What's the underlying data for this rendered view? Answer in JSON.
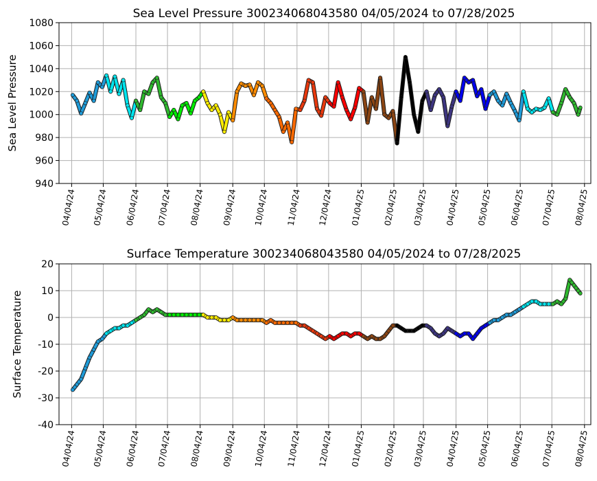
{
  "colors": {
    "grid": "#b0b0b0",
    "month_colors": [
      "#1f9bd8",
      "#00e5ee",
      "#2eb82e",
      "#00ee00",
      "#ffee00",
      "#ff8c00",
      "#ff6a00",
      "#e8380d",
      "#ff0000",
      "#8b4513",
      "#000000",
      "#3d3580",
      "#0000ee",
      "#1f9bd8",
      "#00e5ee",
      "#2eb82e",
      "#00ee00"
    ]
  },
  "chart_data": [
    {
      "type": "scatter",
      "title": "Sea Level Pressure 300234068043580  04/05/2024 to 07/28/2025",
      "xlabel": "",
      "ylabel": "Sea Level Pressure",
      "ylim": [
        940,
        1080
      ],
      "yticks": [
        940,
        960,
        980,
        1000,
        1020,
        1040,
        1060,
        1080
      ],
      "xtick_labels": [
        "04/04/24",
        "05/04/24",
        "06/04/24",
        "07/04/24",
        "08/04/24",
        "09/04/24",
        "10/04/24",
        "11/04/24",
        "12/04/24",
        "01/04/25",
        "02/04/25",
        "03/04/25",
        "04/04/25",
        "05/04/25",
        "06/04/25",
        "07/04/25",
        "08/04/25"
      ],
      "x_range_days": [
        -12,
        493
      ],
      "grid": true,
      "series_points": [
        [
          1,
          1017
        ],
        [
          5,
          1012
        ],
        [
          9,
          1001
        ],
        [
          13,
          1010
        ],
        [
          17,
          1019
        ],
        [
          21,
          1012
        ],
        [
          25,
          1028
        ],
        [
          29,
          1024
        ],
        [
          33,
          1034
        ],
        [
          37,
          1020
        ],
        [
          41,
          1033
        ],
        [
          45,
          1018
        ],
        [
          49,
          1030
        ],
        [
          53,
          1008
        ],
        [
          57,
          997
        ],
        [
          61,
          1012
        ],
        [
          65,
          1004
        ],
        [
          69,
          1020
        ],
        [
          73,
          1018
        ],
        [
          77,
          1028
        ],
        [
          81,
          1032
        ],
        [
          85,
          1015
        ],
        [
          89,
          1010
        ],
        [
          93,
          998
        ],
        [
          97,
          1004
        ],
        [
          101,
          996
        ],
        [
          105,
          1008
        ],
        [
          109,
          1010
        ],
        [
          113,
          1001
        ],
        [
          117,
          1012
        ],
        [
          121,
          1015
        ],
        [
          125,
          1020
        ],
        [
          129,
          1010
        ],
        [
          133,
          1004
        ],
        [
          137,
          1008
        ],
        [
          141,
          1000
        ],
        [
          145,
          985
        ],
        [
          149,
          1002
        ],
        [
          153,
          995
        ],
        [
          157,
          1020
        ],
        [
          161,
          1027
        ],
        [
          165,
          1025
        ],
        [
          169,
          1026
        ],
        [
          173,
          1017
        ],
        [
          177,
          1028
        ],
        [
          181,
          1025
        ],
        [
          185,
          1014
        ],
        [
          189,
          1010
        ],
        [
          193,
          1004
        ],
        [
          197,
          998
        ],
        [
          201,
          985
        ],
        [
          205,
          993
        ],
        [
          209,
          976
        ],
        [
          213,
          1005
        ],
        [
          217,
          1004
        ],
        [
          221,
          1012
        ],
        [
          225,
          1030
        ],
        [
          229,
          1028
        ],
        [
          233,
          1005
        ],
        [
          237,
          999
        ],
        [
          241,
          1015
        ],
        [
          245,
          1010
        ],
        [
          249,
          1007
        ],
        [
          253,
          1028
        ],
        [
          257,
          1015
        ],
        [
          261,
          1004
        ],
        [
          265,
          996
        ],
        [
          269,
          1006
        ],
        [
          273,
          1023
        ],
        [
          277,
          1020
        ],
        [
          281,
          993
        ],
        [
          285,
          1015
        ],
        [
          289,
          1005
        ],
        [
          293,
          1032
        ],
        [
          297,
          1000
        ],
        [
          301,
          997
        ],
        [
          305,
          1003
        ],
        [
          309,
          975
        ],
        [
          313,
          1015
        ],
        [
          317,
          1050
        ],
        [
          321,
          1028
        ],
        [
          325,
          1000
        ],
        [
          329,
          985
        ],
        [
          333,
          1012
        ],
        [
          337,
          1020
        ],
        [
          341,
          1004
        ],
        [
          345,
          1017
        ],
        [
          349,
          1022
        ],
        [
          353,
          1015
        ],
        [
          357,
          990
        ],
        [
          361,
          1007
        ],
        [
          365,
          1020
        ],
        [
          369,
          1012
        ],
        [
          373,
          1032
        ],
        [
          377,
          1028
        ],
        [
          381,
          1030
        ],
        [
          385,
          1016
        ],
        [
          389,
          1022
        ],
        [
          393,
          1005
        ],
        [
          397,
          1017
        ],
        [
          401,
          1020
        ],
        [
          405,
          1012
        ],
        [
          409,
          1008
        ],
        [
          413,
          1018
        ],
        [
          417,
          1010
        ],
        [
          421,
          1003
        ],
        [
          425,
          995
        ],
        [
          429,
          1020
        ],
        [
          433,
          1005
        ],
        [
          437,
          1002
        ],
        [
          441,
          1005
        ],
        [
          445,
          1004
        ],
        [
          449,
          1006
        ],
        [
          453,
          1014
        ],
        [
          457,
          1002
        ],
        [
          461,
          1000
        ],
        [
          465,
          1010
        ],
        [
          469,
          1022
        ],
        [
          473,
          1015
        ],
        [
          477,
          1010
        ],
        [
          481,
          1000
        ],
        [
          483,
          1006
        ]
      ]
    },
    {
      "type": "scatter",
      "title": "Surface Temperature 300234068043580  04/05/2024 to 07/28/2025",
      "xlabel": "",
      "ylabel": "Surface Temperature",
      "ylim": [
        -40,
        20
      ],
      "yticks": [
        -40,
        -30,
        -20,
        -10,
        0,
        10,
        20
      ],
      "xtick_labels": [
        "04/04/24",
        "05/04/24",
        "06/04/24",
        "07/04/24",
        "08/04/24",
        "09/04/24",
        "10/04/24",
        "11/04/24",
        "12/04/24",
        "01/04/25",
        "02/04/25",
        "03/04/25",
        "04/04/25",
        "05/04/25",
        "06/04/25",
        "07/04/25",
        "08/04/25"
      ],
      "x_range_days": [
        -12,
        493
      ],
      "grid": true,
      "series_points": [
        [
          1,
          -27
        ],
        [
          5,
          -25
        ],
        [
          9,
          -23
        ],
        [
          13,
          -19
        ],
        [
          17,
          -15
        ],
        [
          21,
          -12
        ],
        [
          25,
          -9
        ],
        [
          29,
          -8
        ],
        [
          33,
          -6
        ],
        [
          37,
          -5
        ],
        [
          41,
          -4
        ],
        [
          45,
          -4
        ],
        [
          49,
          -3
        ],
        [
          53,
          -3
        ],
        [
          57,
          -2
        ],
        [
          61,
          -1
        ],
        [
          65,
          0
        ],
        [
          69,
          1
        ],
        [
          73,
          3
        ],
        [
          77,
          2
        ],
        [
          81,
          3
        ],
        [
          85,
          2
        ],
        [
          89,
          1
        ],
        [
          93,
          1
        ],
        [
          97,
          1
        ],
        [
          101,
          1
        ],
        [
          105,
          1
        ],
        [
          109,
          1
        ],
        [
          113,
          1
        ],
        [
          117,
          1
        ],
        [
          121,
          1
        ],
        [
          125,
          1
        ],
        [
          129,
          0
        ],
        [
          133,
          0
        ],
        [
          137,
          0
        ],
        [
          141,
          -1
        ],
        [
          145,
          -1
        ],
        [
          149,
          -1
        ],
        [
          153,
          0
        ],
        [
          157,
          -1
        ],
        [
          161,
          -1
        ],
        [
          165,
          -1
        ],
        [
          169,
          -1
        ],
        [
          173,
          -1
        ],
        [
          177,
          -1
        ],
        [
          181,
          -1
        ],
        [
          185,
          -2
        ],
        [
          189,
          -1
        ],
        [
          193,
          -2
        ],
        [
          197,
          -2
        ],
        [
          201,
          -2
        ],
        [
          205,
          -2
        ],
        [
          209,
          -2
        ],
        [
          213,
          -2
        ],
        [
          217,
          -3
        ],
        [
          221,
          -3
        ],
        [
          225,
          -4
        ],
        [
          229,
          -5
        ],
        [
          233,
          -6
        ],
        [
          237,
          -7
        ],
        [
          241,
          -8
        ],
        [
          245,
          -7
        ],
        [
          249,
          -8
        ],
        [
          253,
          -7
        ],
        [
          257,
          -6
        ],
        [
          261,
          -6
        ],
        [
          265,
          -7
        ],
        [
          269,
          -6
        ],
        [
          273,
          -6
        ],
        [
          277,
          -7
        ],
        [
          281,
          -8
        ],
        [
          285,
          -7
        ],
        [
          289,
          -8
        ],
        [
          293,
          -8
        ],
        [
          297,
          -7
        ],
        [
          301,
          -5
        ],
        [
          305,
          -3
        ],
        [
          309,
          -3
        ],
        [
          313,
          -4
        ],
        [
          317,
          -5
        ],
        [
          321,
          -5
        ],
        [
          325,
          -5
        ],
        [
          329,
          -4
        ],
        [
          333,
          -3
        ],
        [
          337,
          -3
        ],
        [
          341,
          -4
        ],
        [
          345,
          -6
        ],
        [
          349,
          -7
        ],
        [
          353,
          -6
        ],
        [
          357,
          -4
        ],
        [
          361,
          -5
        ],
        [
          365,
          -6
        ],
        [
          369,
          -7
        ],
        [
          373,
          -6
        ],
        [
          377,
          -6
        ],
        [
          381,
          -8
        ],
        [
          385,
          -6
        ],
        [
          389,
          -4
        ],
        [
          393,
          -3
        ],
        [
          397,
          -2
        ],
        [
          401,
          -1
        ],
        [
          405,
          -1
        ],
        [
          409,
          0
        ],
        [
          413,
          1
        ],
        [
          417,
          1
        ],
        [
          421,
          2
        ],
        [
          425,
          3
        ],
        [
          429,
          4
        ],
        [
          433,
          5
        ],
        [
          437,
          6
        ],
        [
          441,
          6
        ],
        [
          445,
          5
        ],
        [
          449,
          5
        ],
        [
          453,
          5
        ],
        [
          457,
          5
        ],
        [
          461,
          6
        ],
        [
          465,
          5
        ],
        [
          469,
          7
        ],
        [
          473,
          14
        ],
        [
          477,
          12
        ],
        [
          481,
          10
        ],
        [
          483,
          9
        ]
      ]
    }
  ]
}
